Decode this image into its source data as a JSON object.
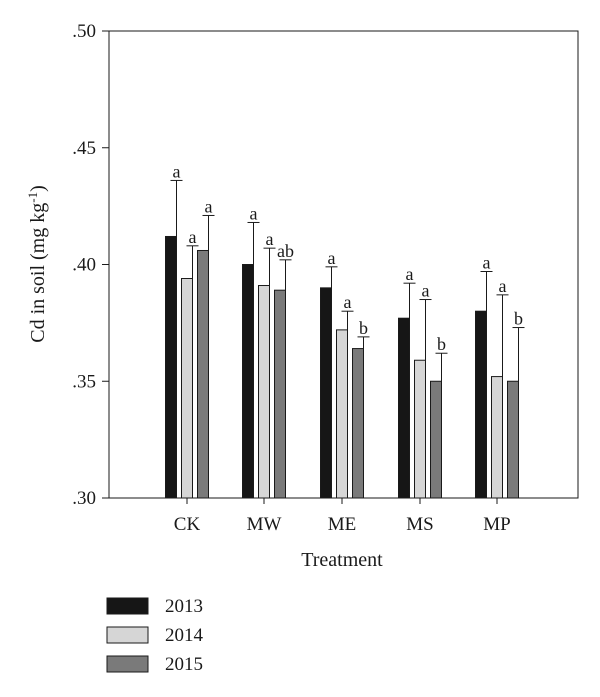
{
  "chart_data": {
    "type": "bar",
    "title": "",
    "xlabel": "Treatment",
    "ylabel": "Cd in soil (mg kg",
    "ylabel_superscript": "-1",
    "ylabel_close": ")",
    "ylim": [
      0.3,
      0.5
    ],
    "yticks": [
      {
        "value": 0.3,
        "label": ".30"
      },
      {
        "value": 0.35,
        "label": ".35"
      },
      {
        "value": 0.4,
        "label": ".40"
      },
      {
        "value": 0.45,
        "label": ".45"
      },
      {
        "value": 0.5,
        "label": ".50"
      }
    ],
    "categories": [
      "CK",
      "MW",
      "ME",
      "MS",
      "MP"
    ],
    "grid": false,
    "legend_position": "bottom-left",
    "series": [
      {
        "name": "2013",
        "color": "#161616",
        "values": [
          0.412,
          0.4,
          0.39,
          0.377,
          0.38
        ],
        "error": [
          0.024,
          0.018,
          0.009,
          0.015,
          0.017
        ],
        "labels": [
          "a",
          "a",
          "a",
          "a",
          "a"
        ]
      },
      {
        "name": "2014",
        "color": "#d6d6d6",
        "values": [
          0.394,
          0.391,
          0.372,
          0.359,
          0.352
        ],
        "error": [
          0.014,
          0.016,
          0.008,
          0.026,
          0.035
        ],
        "labels": [
          "a",
          "a",
          "a",
          "a",
          "a"
        ]
      },
      {
        "name": "2015",
        "color": "#7a7a7a",
        "values": [
          0.406,
          0.389,
          0.364,
          0.35,
          0.35
        ],
        "error": [
          0.015,
          0.013,
          0.005,
          0.012,
          0.023
        ],
        "labels": [
          "a",
          "ab",
          "b",
          "b",
          "b"
        ]
      }
    ]
  }
}
